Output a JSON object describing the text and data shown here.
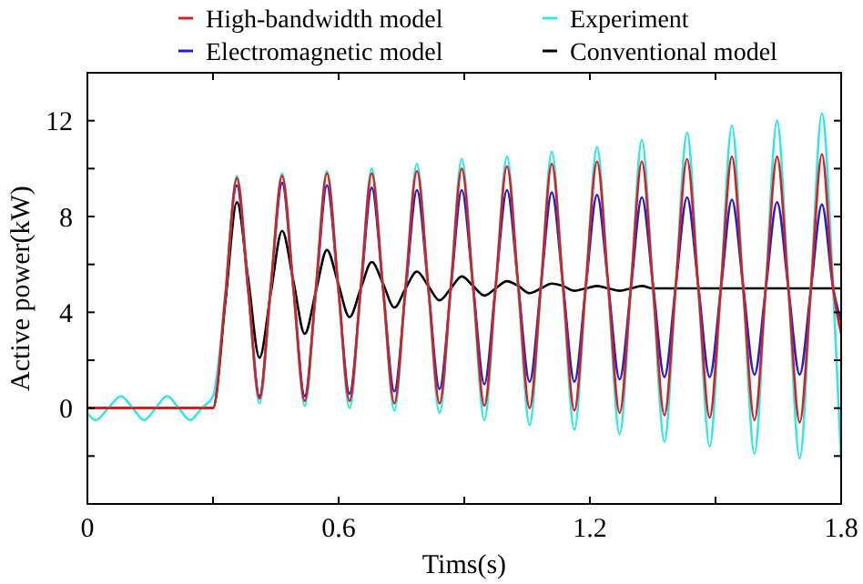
{
  "chart_data": {
    "type": "line",
    "xlabel": "Tims(s)",
    "ylabel": "Active power(kW)",
    "x": [
      0,
      0.3,
      0.33,
      0.357,
      0.384,
      0.411,
      0.438,
      0.465,
      0.492,
      0.519,
      0.546,
      0.572,
      0.599,
      0.626,
      0.653,
      0.679,
      0.706,
      0.733,
      0.76,
      0.787,
      0.814,
      0.841,
      0.868,
      0.894,
      0.921,
      0.948,
      0.975,
      1.002,
      1.029,
      1.056,
      1.083,
      1.109,
      1.136,
      1.163,
      1.19,
      1.217,
      1.244,
      1.271,
      1.298,
      1.324,
      1.351,
      1.378,
      1.405,
      1.432,
      1.459,
      1.486,
      1.513,
      1.539,
      1.566,
      1.593,
      1.62,
      1.647,
      1.674,
      1.701,
      1.728,
      1.754,
      1.781,
      1.8
    ],
    "series": [
      {
        "name": "High-bandwidth model",
        "color": "#d62020",
        "values": [
          0,
          0,
          4.8,
          9.6,
          5.0,
          0.4,
          5.1,
          9.7,
          5.0,
          0.3,
          5.1,
          9.8,
          5.1,
          0.3,
          5.1,
          9.8,
          5.0,
          0.2,
          5.1,
          9.9,
          5.1,
          0.2,
          5.1,
          10.0,
          5.1,
          0.1,
          5.1,
          10.1,
          5.1,
          0.0,
          5.1,
          10.2,
          5.1,
          -0.1,
          5.1,
          10.3,
          5.1,
          -0.2,
          5.1,
          10.3,
          5.0,
          -0.3,
          5.1,
          10.4,
          5.0,
          -0.4,
          5.1,
          10.5,
          5.0,
          -0.5,
          5.0,
          10.5,
          5.0,
          -0.6,
          5.0,
          10.6,
          5.0,
          3.1
        ]
      },
      {
        "name": "Experiment",
        "color": "#33e6e6",
        "x": [
          0,
          0.02,
          0.05,
          0.08,
          0.108,
          0.135,
          0.163,
          0.19,
          0.218,
          0.245,
          0.273,
          0.3,
          0.33,
          0.357,
          0.384,
          0.411,
          0.438,
          0.465,
          0.492,
          0.519,
          0.546,
          0.572,
          0.599,
          0.626,
          0.653,
          0.679,
          0.706,
          0.733,
          0.76,
          0.787,
          0.814,
          0.841,
          0.868,
          0.894,
          0.921,
          0.948,
          0.975,
          1.002,
          1.029,
          1.056,
          1.083,
          1.109,
          1.136,
          1.163,
          1.19,
          1.217,
          1.244,
          1.271,
          1.298,
          1.324,
          1.351,
          1.378,
          1.405,
          1.432,
          1.459,
          1.486,
          1.513,
          1.539,
          1.566,
          1.593,
          1.62,
          1.647,
          1.674,
          1.701,
          1.728,
          1.754,
          1.781,
          1.8
        ],
        "values": [
          -0.2,
          -0.5,
          0,
          0.5,
          0,
          -0.5,
          0,
          0.5,
          0,
          -0.5,
          0,
          0.5,
          4.8,
          9.7,
          5.0,
          0.2,
          5.0,
          9.8,
          5.0,
          0.1,
          5.0,
          9.9,
          5.0,
          0.0,
          5.0,
          10.0,
          5.0,
          -0.1,
          5.1,
          10.2,
          5.0,
          -0.2,
          5.1,
          10.4,
          5.0,
          -0.5,
          5.0,
          10.5,
          4.9,
          -0.7,
          5.0,
          10.7,
          4.9,
          -0.9,
          5.0,
          10.9,
          4.9,
          -1.1,
          5.1,
          11.2,
          4.9,
          -1.4,
          5.1,
          11.5,
          5.0,
          -1.6,
          5.1,
          11.8,
          5.0,
          -1.9,
          5.1,
          12.0,
          5.0,
          -2.1,
          5.1,
          12.3,
          5.0,
          -2.2
        ]
      },
      {
        "name": "Electromagnetic model",
        "color": "#2020d0",
        "values": [
          null,
          null,
          4.6,
          9.3,
          4.9,
          0.5,
          5.0,
          9.4,
          5.0,
          0.5,
          4.9,
          9.3,
          5.0,
          0.6,
          4.9,
          9.2,
          5.0,
          0.7,
          4.9,
          9.1,
          5.0,
          0.8,
          5.0,
          9.1,
          5.1,
          1.0,
          5.1,
          9.1,
          5.1,
          1.1,
          5.1,
          9.0,
          5.1,
          1.1,
          5.0,
          8.9,
          5.1,
          1.2,
          5.0,
          8.8,
          5.1,
          1.3,
          5.1,
          8.8,
          5.1,
          1.3,
          5.0,
          8.7,
          5.1,
          1.4,
          5.0,
          8.6,
          5.0,
          1.4,
          5.0,
          8.5,
          5.0,
          3.6
        ]
      },
      {
        "name": "Conventional model",
        "color": "#000000",
        "values": [
          0,
          0,
          4.5,
          8.6,
          5.4,
          2.1,
          4.8,
          7.4,
          5.3,
          3.1,
          4.9,
          6.6,
          5.2,
          3.8,
          5.0,
          6.1,
          5.2,
          4.2,
          5.0,
          5.7,
          5.1,
          4.5,
          5.0,
          5.5,
          5.1,
          4.7,
          5.0,
          5.3,
          5.1,
          4.8,
          5.0,
          5.2,
          5.1,
          4.9,
          5.0,
          5.1,
          5.0,
          4.9,
          5.0,
          5.1,
          5.0,
          5.0,
          5.0,
          5.0,
          5.0,
          5.0,
          5.0,
          5.0,
          5.0,
          5.0,
          5.0,
          5.0,
          5.0,
          5.0,
          5.0,
          5.0,
          5.0,
          5.0
        ]
      }
    ],
    "xlim": [
      0,
      1.8
    ],
    "ylim": [
      -4,
      14
    ],
    "xticks": [
      0,
      {
        "value": 0.3,
        "label": null
      },
      0.6,
      {
        "value": 0.9,
        "label": null
      },
      1.2,
      {
        "value": 1.5,
        "label": null
      },
      1.8
    ],
    "yticks": [
      {
        "value": -2,
        "label": null
      },
      0,
      {
        "value": 2,
        "label": null
      },
      4,
      {
        "value": 6,
        "label": null
      },
      8,
      {
        "value": 10,
        "label": null
      },
      12
    ],
    "legend": "top"
  }
}
